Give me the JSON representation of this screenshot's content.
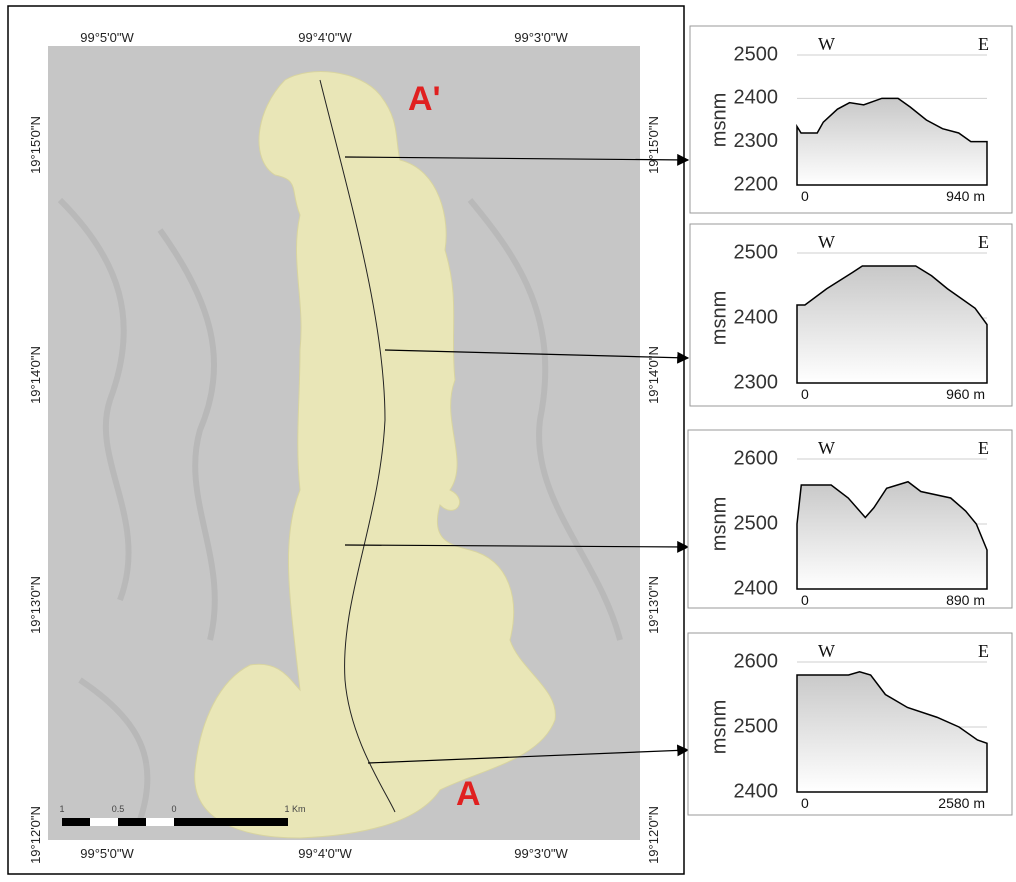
{
  "map": {
    "top_labels": [
      "99°5'0\"W",
      "99°4'0\"W",
      "99°3'0\"W"
    ],
    "bottom_labels": [
      "99°5'0\"W",
      "99°4'0\"W",
      "99°3'0\"W"
    ],
    "left_labels": [
      "19°15'0\"N",
      "19°14'0\"N",
      "19°13'0\"N",
      "19°12'0\"N"
    ],
    "right_labels": [
      "19°15'0\"N",
      "19°14'0\"N",
      "19°13'0\"N",
      "19°12'0\"N"
    ],
    "section_start": "A",
    "section_end": "A'",
    "scale_labels": [
      "1",
      "0.5",
      "0",
      "1 Km"
    ]
  },
  "chart_data": [
    {
      "type": "area",
      "y_label": "msnm",
      "left_label": "W",
      "right_label": "E",
      "x": [
        0,
        20,
        100,
        130,
        200,
        260,
        330,
        420,
        500,
        560,
        640,
        720,
        800,
        860,
        940
      ],
      "values": [
        2335,
        2320,
        2320,
        2345,
        2375,
        2390,
        2385,
        2400,
        2400,
        2380,
        2350,
        2330,
        2320,
        2300,
        2300
      ],
      "xlim": [
        0,
        940
      ],
      "xticks": [
        0,
        {
          "value": 940,
          "label": "940 m"
        }
      ],
      "ylim": [
        2200,
        2500
      ],
      "yticks": [
        2500,
        2400,
        2300,
        2200
      ]
    },
    {
      "type": "area",
      "y_label": "msnm",
      "left_label": "W",
      "right_label": "E",
      "x": [
        0,
        40,
        150,
        280,
        330,
        600,
        680,
        760,
        830,
        900,
        960
      ],
      "values": [
        2420,
        2420,
        2445,
        2470,
        2480,
        2480,
        2465,
        2445,
        2430,
        2415,
        2390
      ],
      "xlim": [
        0,
        960
      ],
      "xticks": [
        0,
        {
          "value": 960,
          "label": "960 m"
        }
      ],
      "ylim": [
        2300,
        2500
      ],
      "yticks": [
        2500,
        2400,
        2300
      ]
    },
    {
      "type": "area",
      "y_label": "msnm",
      "left_label": "W",
      "right_label": "E",
      "x": [
        0,
        20,
        160,
        240,
        320,
        360,
        420,
        520,
        580,
        720,
        790,
        840,
        890
      ],
      "values": [
        2500,
        2560,
        2560,
        2540,
        2510,
        2525,
        2555,
        2565,
        2550,
        2540,
        2520,
        2500,
        2460
      ],
      "xlim": [
        0,
        890
      ],
      "xticks": [
        0,
        {
          "value": 890,
          "label": "890 m"
        }
      ],
      "ylim": [
        2400,
        2600
      ],
      "yticks": [
        2600,
        2500,
        2400
      ]
    },
    {
      "type": "area",
      "y_label": "msnm",
      "left_label": "W",
      "right_label": "E",
      "x": [
        0,
        700,
        850,
        1000,
        1200,
        1500,
        1900,
        2200,
        2450,
        2580
      ],
      "values": [
        2580,
        2580,
        2585,
        2580,
        2550,
        2530,
        2515,
        2500,
        2480,
        2475
      ],
      "xlim": [
        0,
        2580
      ],
      "xticks": [
        0,
        {
          "value": 2580,
          "label": "2580 m"
        }
      ],
      "ylim": [
        2400,
        2600
      ],
      "yticks": [
        2600,
        2500,
        2400
      ]
    }
  ]
}
